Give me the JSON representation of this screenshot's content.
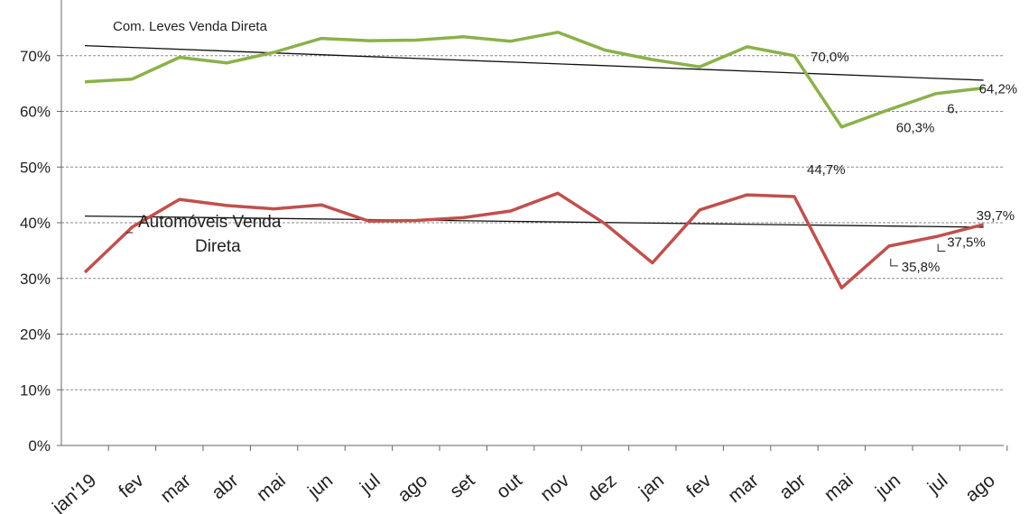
{
  "chart_data": {
    "type": "line",
    "categories": [
      "jan'19",
      "fev",
      "mar",
      "abr",
      "mai",
      "jun",
      "jul",
      "ago",
      "set",
      "out",
      "nov",
      "dez",
      "jan",
      "fev",
      "mar",
      "abr",
      "mai",
      "jun",
      "jul",
      "ago"
    ],
    "ylim": [
      0,
      0.8
    ],
    "yticks": [
      "0%",
      "10%",
      "20%",
      "30%",
      "40%",
      "50%",
      "60%",
      "70%"
    ],
    "ytick_values": [
      0,
      0.1,
      0.2,
      0.3,
      0.4,
      0.5,
      0.6,
      0.7
    ],
    "grid": "horizontal dashed",
    "series": [
      {
        "name": "Com. Leves Venda Direta",
        "color": "#8bb14a",
        "values": [
          0.653,
          0.658,
          0.697,
          0.687,
          0.706,
          0.731,
          0.727,
          0.728,
          0.734,
          0.726,
          0.742,
          0.71,
          0.693,
          0.68,
          0.716,
          0.7,
          0.572,
          0.603,
          0.632,
          0.642
        ],
        "trend": [
          0.718,
          0.656
        ]
      },
      {
        "name": "Automóveis Venda Direta",
        "color": "#c0504d",
        "values": [
          0.311,
          0.392,
          0.442,
          0.431,
          0.425,
          0.432,
          0.403,
          0.404,
          0.409,
          0.421,
          0.453,
          0.398,
          0.328,
          0.423,
          0.45,
          0.447,
          0.283,
          0.358,
          0.375,
          0.397
        ],
        "trend": [
          0.412,
          0.392
        ]
      }
    ],
    "annotations": [
      {
        "text": "70,0%",
        "series": 0,
        "index": 15
      },
      {
        "text": "60,3%",
        "series": 0,
        "index": 17
      },
      {
        "text": "6.",
        "series": 0,
        "index": 18
      },
      {
        "text": "64,2%",
        "series": 0,
        "index": 19
      },
      {
        "text": "44,7%",
        "series": 1,
        "index": 15
      },
      {
        "text": "35,8%",
        "series": 1,
        "index": 17
      },
      {
        "text": "37,5%",
        "series": 1,
        "index": 18
      },
      {
        "text": "39,7%",
        "series": 1,
        "index": 19
      }
    ],
    "series_labels": {
      "green": "Com. Leves Venda Direta",
      "red_line1": "Automóveis Venda",
      "red_line2": "Direta"
    }
  }
}
